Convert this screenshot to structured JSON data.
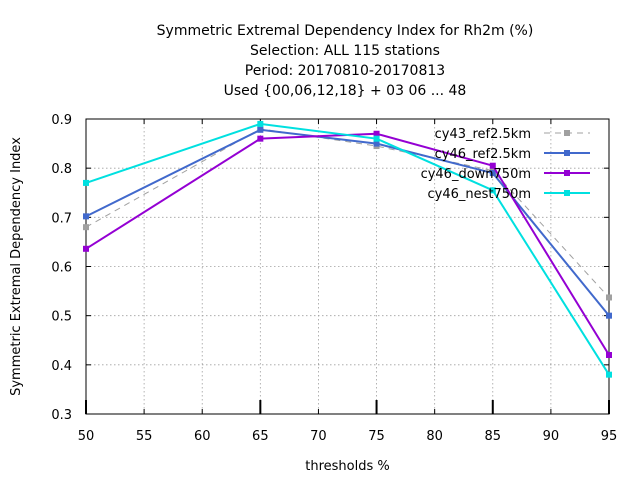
{
  "chart_data": {
    "type": "line",
    "title_lines": [
      "Symmetric Extremal Dependency Index  for Rh2m (%)",
      "Selection: ALL    115 stations",
      "Period: 20170810-20170813",
      "Used {00,06,12,18} + 03 06 ... 48"
    ],
    "xlabel": "thresholds %",
    "ylabel": "Symmetric Extremal Dependency Index",
    "xlim": [
      50,
      95
    ],
    "ylim": [
      0.3,
      0.9
    ],
    "xticks": [
      50,
      55,
      60,
      65,
      70,
      75,
      80,
      85,
      90,
      95
    ],
    "yticks": [
      0.3,
      0.4,
      0.5,
      0.6,
      0.7,
      0.8,
      0.9
    ],
    "x": [
      50,
      65,
      75,
      85,
      95
    ],
    "grid": true,
    "legend_position": "top-right",
    "series": [
      {
        "name": "cy43_ref2.5km",
        "color": "#a0a0a0",
        "dashed": true,
        "values": [
          0.68,
          0.88,
          0.845,
          0.795,
          0.537
        ]
      },
      {
        "name": "cy46_ref2.5km",
        "color": "#4169cc",
        "dashed": false,
        "values": [
          0.702,
          0.878,
          0.85,
          0.79,
          0.5
        ]
      },
      {
        "name": "cy46_down750m",
        "color": "#9400d3",
        "dashed": false,
        "values": [
          0.636,
          0.86,
          0.87,
          0.805,
          0.42
        ]
      },
      {
        "name": "cy46_nest750m",
        "color": "#00e0e0",
        "dashed": false,
        "values": [
          0.77,
          0.89,
          0.86,
          0.755,
          0.38
        ]
      }
    ]
  }
}
